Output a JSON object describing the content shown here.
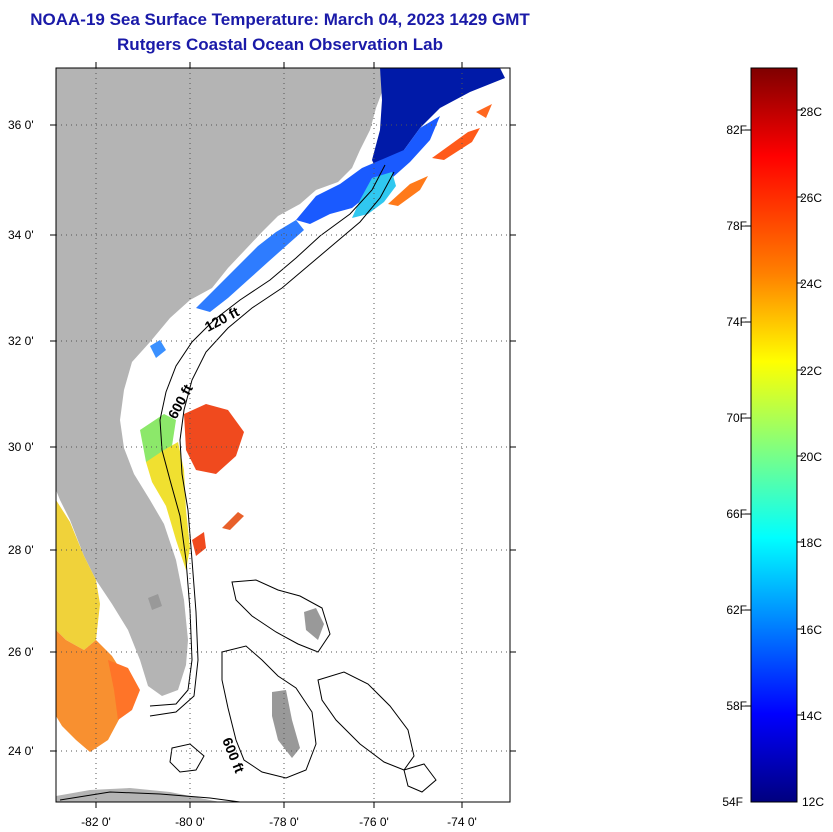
{
  "title": "NOAA-19 Sea Surface Temperature:  March 04, 2023 1429 GMT",
  "subtitle": "Rutgers Coastal Ocean Observation Lab",
  "axes": {
    "x_ticks": [
      "-82 0'",
      "-80 0'",
      "-78 0'",
      "-76 0'",
      "-74 0'"
    ],
    "y_ticks": [
      "36 0'",
      "34 0'",
      "32 0'",
      "30 0'",
      "28 0'",
      "26 0'",
      "24 0'"
    ]
  },
  "contour_labels": [
    "120 ft",
    "600 ft",
    "600 ft"
  ],
  "colorbar": {
    "fahrenheit_labels": [
      "82F",
      "78F",
      "74F",
      "70F",
      "66F",
      "62F",
      "58F",
      "54F"
    ],
    "celsius_labels": [
      "28C",
      "26C",
      "24C",
      "22C",
      "20C",
      "18C",
      "16C",
      "14C",
      "12C"
    ],
    "colors": [
      "#7f0000",
      "#ff0000",
      "#ff8000",
      "#ffff00",
      "#80ff80",
      "#00ffff",
      "#0080ff",
      "#0000ff",
      "#00007f"
    ]
  },
  "colors": {
    "land": "#b4b4b4",
    "title": "#1a1aa8"
  }
}
